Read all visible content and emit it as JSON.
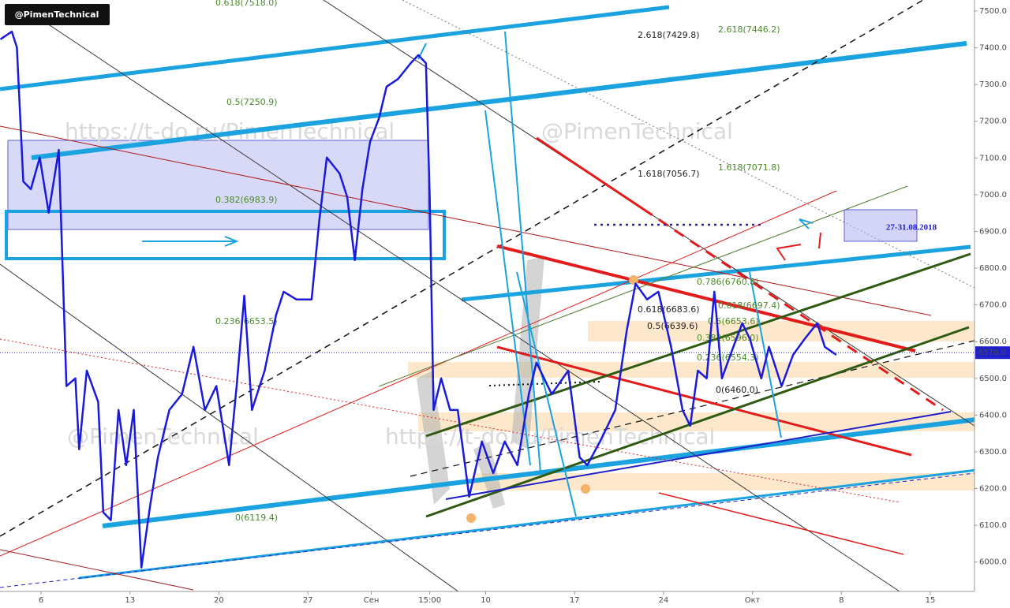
{
  "chart_data": {
    "type": "line",
    "badge": "@PimenTechnical",
    "watermarks": [
      "https://t-do.ru/PimenTechnical",
      "@PimenTechnical",
      "@PimenTechnical",
      "https://t-do.ru/PimenTechnical"
    ],
    "period_label": "27-31.08.2018",
    "xlim": [
      1.77,
      78.48
    ],
    "ylim": [
      5920,
      7530
    ],
    "xticks": [
      {
        "value": 5,
        "label": "6"
      },
      {
        "value": 12,
        "label": "13"
      },
      {
        "value": 19,
        "label": "20"
      },
      {
        "value": 26,
        "label": "27"
      },
      {
        "value": 31,
        "label": "Сен"
      },
      {
        "value": 35.6,
        "label": "15:00"
      },
      {
        "value": 40,
        "label": "10"
      },
      {
        "value": 47,
        "label": "17"
      },
      {
        "value": 54,
        "label": "24"
      },
      {
        "value": 61,
        "label": "Окт"
      },
      {
        "value": 68,
        "label": "8"
      },
      {
        "value": 75,
        "label": "15"
      }
    ],
    "yticks": [
      {
        "value": 6000,
        "label": "6000.0"
      },
      {
        "value": 6100,
        "label": "6100.0"
      },
      {
        "value": 6200,
        "label": "6200.0"
      },
      {
        "value": 6300,
        "label": "6300.0"
      },
      {
        "value": 6400,
        "label": "6400.0"
      },
      {
        "value": 6500,
        "label": "6500.0"
      },
      {
        "value": 6600,
        "label": "6600.0"
      },
      {
        "value": 6700,
        "label": "6700.0"
      },
      {
        "value": 6800,
        "label": "6800.0"
      },
      {
        "value": 6900,
        "label": "6900.0"
      },
      {
        "value": 7000,
        "label": "7000.0"
      },
      {
        "value": 7100,
        "label": "7100.0"
      },
      {
        "value": 7200,
        "label": "7200.0"
      },
      {
        "value": 7300,
        "label": "7300.0"
      },
      {
        "value": 7400,
        "label": "7400.0"
      },
      {
        "value": 7500,
        "label": "7500.0"
      }
    ],
    "last_price": {
      "value": 6570,
      "label": "6570.0"
    },
    "x": [
      1.8,
      2.7,
      3.1,
      3.6,
      4.2,
      4.9,
      5.6,
      6.4,
      7.0,
      7.7,
      8.0,
      8.6,
      9.5,
      9.9,
      10.5,
      11.1,
      11.7,
      12.3,
      12.9,
      13.6,
      14.2,
      15.1,
      16.1,
      17.0,
      17.9,
      18.8,
      19.8,
      20.4,
      21.0,
      21.6,
      22.6,
      23.5,
      24.1,
      25.1,
      26.3,
      26.9,
      27.5,
      28.5,
      29.1,
      29.7,
      30.3,
      30.9,
      31.6,
      32.2,
      33.1,
      34.1,
      34.7,
      35.3,
      35.6,
      35.9,
      36.5,
      37.2,
      37.8,
      38.7,
      39.7,
      40.6,
      41.5,
      42.5,
      43.4,
      44.0,
      45.2,
      46.5,
      47.4,
      48.0,
      49.0,
      50.2,
      51.1,
      51.8,
      52.7,
      53.6,
      54.6,
      55.5,
      56.1,
      56.7,
      57.4,
      58.0,
      58.6,
      59.5,
      60.2,
      60.8,
      61.7,
      62.3,
      63.3,
      64.2,
      65.1,
      66.1,
      66.7,
      67.6
    ],
    "series": [
      {
        "color": "#1a1adb",
        "values": [
          7423,
          7444,
          7401,
          7036,
          7015,
          7101,
          6951,
          7122,
          6479,
          6500,
          6307,
          6521,
          6436,
          6135,
          6114,
          6414,
          6264,
          6414,
          5985,
          6157,
          6285,
          6414,
          6457,
          6586,
          6414,
          6479,
          6264,
          6479,
          6725,
          6414,
          6521,
          6672,
          6736,
          6715,
          6715,
          6929,
          7101,
          7058,
          6994,
          6822,
          7015,
          7144,
          7208,
          7294,
          7315,
          7358,
          7380,
          7358,
          6994,
          6414,
          6500,
          6414,
          6414,
          6178,
          6328,
          6242,
          6328,
          6264,
          6457,
          6543,
          6457,
          6521,
          6285,
          6264,
          6328,
          6414,
          6629,
          6758,
          6715,
          6736,
          6586,
          6414,
          6371,
          6521,
          6500,
          6736,
          6500,
          6586,
          6650,
          6607,
          6500,
          6586,
          6479,
          6564,
          6607,
          6650,
          6586,
          6564
        ]
      }
    ],
    "annotations": [
      "0.618(7518.0)",
      "0.5(7250.9)",
      "0.382(6983.9)",
      "0.236(6653.5)",
      "0(6119.4)",
      "2.618(7429.8)",
      "2.618(7446.2)",
      "1.618(7056.7)",
      "1.618(7071.8)",
      "0.786(6760.8)",
      "0.618(6683.6)",
      "0.618(6697.4)",
      "0.5(6639.6)",
      "0.5(6653.6)",
      "0.382(6596.0)",
      "0.236(6554.3)",
      "0(6460.0)"
    ]
  }
}
